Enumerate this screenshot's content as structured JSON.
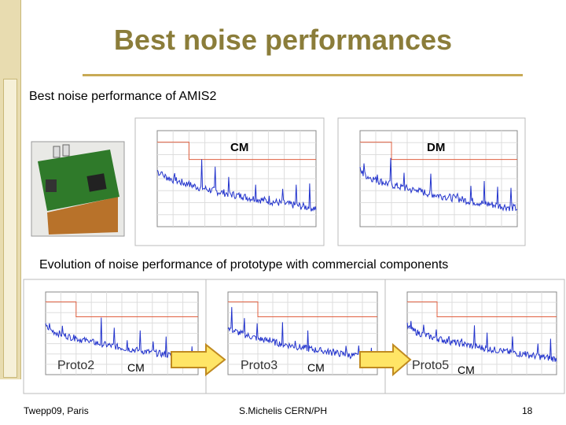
{
  "slide": {
    "title": "Best noise performances",
    "section1": {
      "heading": "Best noise performance of AMIS2",
      "labels": [
        "CM",
        "DM"
      ]
    },
    "section2": {
      "heading": "Evolution of noise performance of prototype with commercial components",
      "prototypes": [
        {
          "name": "Proto2",
          "mode": "CM"
        },
        {
          "name": "Proto3",
          "mode": "CM"
        },
        {
          "name": "Proto5",
          "mode": "CM"
        }
      ]
    },
    "footer": {
      "left": "Twepp09, Paris",
      "center": "S.Michelis CERN/PH",
      "page": "18"
    }
  }
}
